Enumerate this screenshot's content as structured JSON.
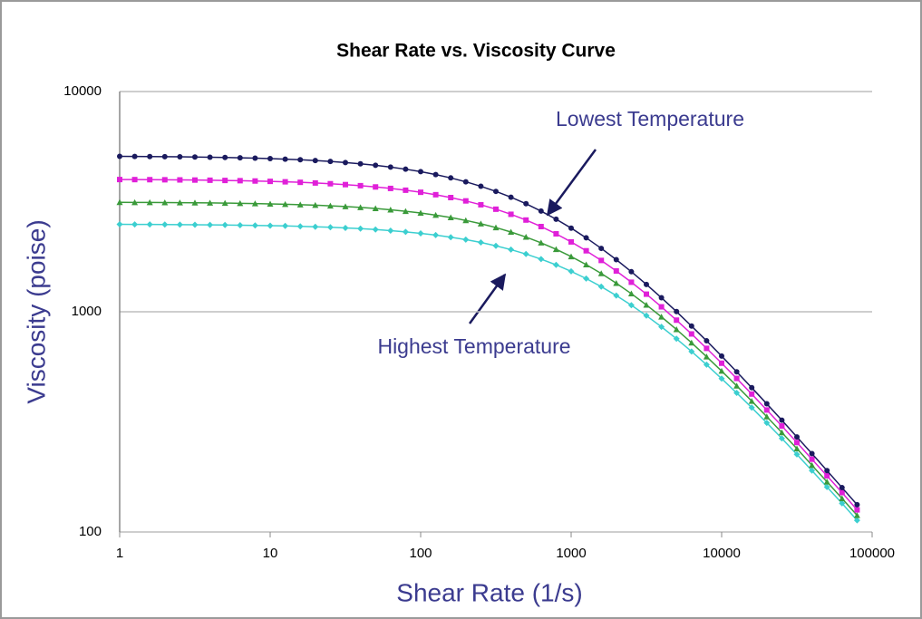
{
  "chart_data": {
    "type": "line",
    "title": "Shear Rate vs. Viscosity Curve",
    "x_label": "Shear Rate (1/s)",
    "y_label": "Viscosity (poise)",
    "annotations": [
      {
        "text": "Lowest Temperature"
      },
      {
        "text": "Highest Temperature"
      }
    ],
    "x": [
      1,
      1.259,
      1.585,
      1.995,
      2.512,
      3.162,
      3.981,
      5.012,
      6.31,
      7.943,
      10,
      12.59,
      15.85,
      19.95,
      25.12,
      31.62,
      39.81,
      50.12,
      63.1,
      79.43,
      100,
      125.9,
      158.5,
      199.5,
      251.2,
      316.2,
      398.1,
      501.2,
      631,
      794.3,
      1000,
      1259,
      1585,
      1995,
      2512,
      3162,
      3981,
      5012,
      6310,
      7943,
      10000,
      12589,
      15849,
      19953,
      25119,
      31623,
      39811,
      50119,
      63096,
      79433
    ],
    "series": [
      {
        "color": "#1a1a5e",
        "marker": "circle",
        "values": [
          5077,
          5073,
          5067,
          5061,
          5053,
          5043,
          5032,
          5018,
          5002,
          4983,
          4960,
          4932,
          4900,
          4861,
          4815,
          4761,
          4698,
          4625,
          4539,
          4440,
          4327,
          4198,
          4053,
          3892,
          3714,
          3520,
          3313,
          3094,
          2865,
          2632,
          2398,
          2166,
          1940,
          1724,
          1520,
          1331,
          1158,
          1002,
          861,
          738,
          629,
          534,
          452,
          382,
          322,
          270,
          227,
          190,
          159,
          133
        ]
      },
      {
        "color": "#e020d8",
        "marker": "square",
        "values": [
          3985,
          3982,
          3979,
          3975,
          3969,
          3963,
          3956,
          3947,
          3937,
          3924,
          3909,
          3891,
          3870,
          3844,
          3814,
          3779,
          3737,
          3688,
          3631,
          3564,
          3488,
          3400,
          3300,
          3187,
          3061,
          2922,
          2771,
          2609,
          2437,
          2259,
          2076,
          1892,
          1710,
          1532,
          1362,
          1202,
          1053,
          916,
          793,
          682,
          584,
          498,
          423,
          358,
          303,
          255,
          214,
          180,
          151,
          126
        ]
      },
      {
        "color": "#3a9a3a",
        "marker": "triangle",
        "values": [
          3140,
          3138,
          3136,
          3133,
          3130,
          3126,
          3121,
          3115,
          3108,
          3100,
          3090,
          3078,
          3064,
          3048,
          3028,
          3004,
          2976,
          2944,
          2905,
          2860,
          2808,
          2747,
          2678,
          2599,
          2511,
          2412,
          2302,
          2184,
          2056,
          1921,
          1781,
          1637,
          1492,
          1348,
          1208,
          1074,
          948,
          831,
          723,
          625,
          538,
          461,
          393,
          334,
          283,
          239,
          201,
          169,
          142,
          119
        ]
      },
      {
        "color": "#3ccfd0",
        "marker": "diamond",
        "values": [
          2494,
          2492,
          2491,
          2489,
          2487,
          2484,
          2481,
          2477,
          2473,
          2467,
          2461,
          2453,
          2443,
          2432,
          2419,
          2403,
          2385,
          2363,
          2336,
          2306,
          2270,
          2229,
          2181,
          2126,
          2064,
          1993,
          1915,
          1829,
          1734,
          1633,
          1526,
          1415,
          1300,
          1185,
          1071,
          960,
          854,
          754,
          660,
          575,
          497,
          428,
          367,
          313,
          266,
          225,
          190,
          160,
          135,
          113
        ]
      }
    ],
    "xlim": [
      1,
      100000
    ],
    "xticks": [
      1,
      10,
      100,
      1000,
      10000,
      100000
    ],
    "ylim": [
      100,
      10000
    ],
    "yticks": [
      100,
      1000,
      10000
    ],
    "x_log": true,
    "y_log": true,
    "grid": true
  }
}
